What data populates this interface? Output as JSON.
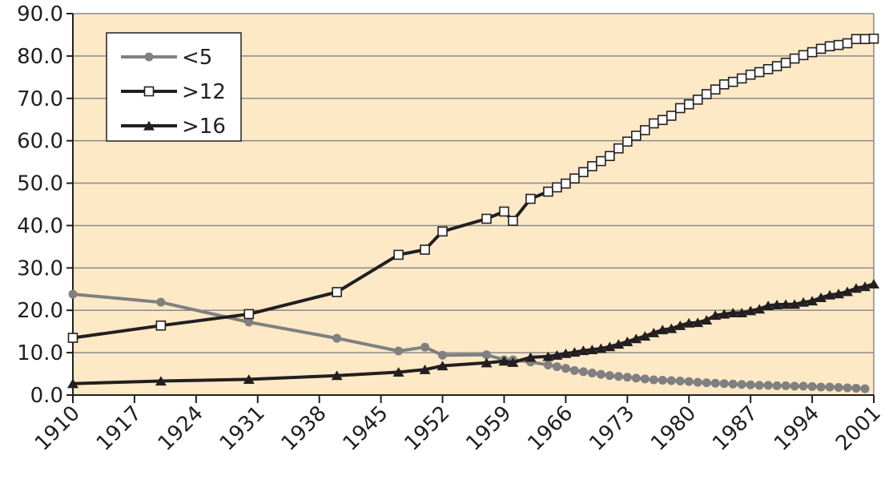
{
  "chart_data": {
    "type": "line",
    "title": "",
    "xlabel": "",
    "ylabel": "",
    "xlim": [
      1910,
      2001
    ],
    "ylim": [
      0,
      90
    ],
    "grid": true,
    "legend_position": "top-left",
    "background_color": "#fde9c6",
    "y_tick_labels": [
      "0.0",
      "10.0",
      "20.0",
      "30.0",
      "40.0",
      "50.0",
      "60.0",
      "70.0",
      "80.0",
      "90.0"
    ],
    "x_tick_labels": [
      "1910",
      "1917",
      "1924",
      "1931",
      "1938",
      "1945",
      "1952",
      "1959",
      "1966",
      "1973",
      "1980",
      "1987",
      "1994",
      "2001"
    ],
    "series": [
      {
        "name": "<5",
        "color": "#808080",
        "marker": "circle",
        "points": [
          [
            1910,
            23.8
          ],
          [
            1920,
            21.9
          ],
          [
            1930,
            17.2
          ],
          [
            1940,
            13.4
          ],
          [
            1947,
            10.4
          ],
          [
            1950,
            11.3
          ],
          [
            1952,
            9.4
          ],
          [
            1957,
            9.5
          ],
          [
            1959,
            8.3
          ],
          [
            1960,
            8.3
          ],
          [
            1962,
            7.8
          ],
          [
            1964,
            7.1
          ],
          [
            1965,
            6.7
          ],
          [
            1966,
            6.3
          ],
          [
            1967,
            5.8
          ],
          [
            1968,
            5.5
          ],
          [
            1969,
            5.2
          ],
          [
            1970,
            4.9
          ],
          [
            1971,
            4.6
          ],
          [
            1972,
            4.4
          ],
          [
            1973,
            4.2
          ],
          [
            1974,
            4.0
          ],
          [
            1975,
            3.8
          ],
          [
            1976,
            3.6
          ],
          [
            1977,
            3.5
          ],
          [
            1978,
            3.4
          ],
          [
            1979,
            3.3
          ],
          [
            1980,
            3.2
          ],
          [
            1981,
            3.0
          ],
          [
            1982,
            2.9
          ],
          [
            1983,
            2.8
          ],
          [
            1984,
            2.7
          ],
          [
            1985,
            2.6
          ],
          [
            1986,
            2.5
          ],
          [
            1987,
            2.4
          ],
          [
            1988,
            2.3
          ],
          [
            1989,
            2.3
          ],
          [
            1990,
            2.2
          ],
          [
            1991,
            2.2
          ],
          [
            1992,
            2.1
          ],
          [
            1993,
            2.1
          ],
          [
            1994,
            2.0
          ],
          [
            1995,
            1.9
          ],
          [
            1996,
            1.9
          ],
          [
            1997,
            1.8
          ],
          [
            1998,
            1.7
          ],
          [
            1999,
            1.6
          ],
          [
            2000,
            1.5
          ]
        ]
      },
      {
        "name": ">12",
        "color": "#231f20",
        "marker": "square-open",
        "points": [
          [
            1910,
            13.5
          ],
          [
            1920,
            16.4
          ],
          [
            1930,
            19.1
          ],
          [
            1940,
            24.3
          ],
          [
            1947,
            33.1
          ],
          [
            1950,
            34.3
          ],
          [
            1952,
            38.6
          ],
          [
            1957,
            41.6
          ],
          [
            1959,
            43.3
          ],
          [
            1960,
            41.1
          ],
          [
            1962,
            46.3
          ],
          [
            1964,
            48.0
          ],
          [
            1965,
            49.0
          ],
          [
            1966,
            49.9
          ],
          [
            1967,
            51.1
          ],
          [
            1968,
            52.6
          ],
          [
            1969,
            54.0
          ],
          [
            1970,
            55.2
          ],
          [
            1971,
            56.4
          ],
          [
            1972,
            58.2
          ],
          [
            1973,
            59.8
          ],
          [
            1974,
            61.2
          ],
          [
            1975,
            62.5
          ],
          [
            1976,
            64.1
          ],
          [
            1977,
            64.9
          ],
          [
            1978,
            65.9
          ],
          [
            1979,
            67.7
          ],
          [
            1980,
            68.6
          ],
          [
            1981,
            69.7
          ],
          [
            1982,
            71.0
          ],
          [
            1983,
            72.1
          ],
          [
            1984,
            73.3
          ],
          [
            1985,
            73.9
          ],
          [
            1986,
            74.7
          ],
          [
            1987,
            75.6
          ],
          [
            1988,
            76.2
          ],
          [
            1989,
            76.9
          ],
          [
            1990,
            77.6
          ],
          [
            1991,
            78.4
          ],
          [
            1992,
            79.4
          ],
          [
            1993,
            80.2
          ],
          [
            1994,
            80.9
          ],
          [
            1995,
            81.7
          ],
          [
            1996,
            82.3
          ],
          [
            1997,
            82.6
          ],
          [
            1998,
            83.0
          ],
          [
            1999,
            84.0
          ],
          [
            2000,
            84.0
          ],
          [
            2001,
            84.1
          ]
        ]
      },
      {
        "name": ">16",
        "color": "#231f20",
        "marker": "triangle",
        "points": [
          [
            1910,
            2.7
          ],
          [
            1920,
            3.3
          ],
          [
            1930,
            3.7
          ],
          [
            1940,
            4.6
          ],
          [
            1947,
            5.4
          ],
          [
            1950,
            6.0
          ],
          [
            1952,
            6.9
          ],
          [
            1957,
            7.6
          ],
          [
            1959,
            8.0
          ],
          [
            1960,
            7.7
          ],
          [
            1962,
            8.9
          ],
          [
            1964,
            9.1
          ],
          [
            1965,
            9.4
          ],
          [
            1966,
            9.8
          ],
          [
            1967,
            10.1
          ],
          [
            1968,
            10.5
          ],
          [
            1969,
            10.7
          ],
          [
            1970,
            11.0
          ],
          [
            1971,
            11.4
          ],
          [
            1972,
            12.0
          ],
          [
            1973,
            12.6
          ],
          [
            1974,
            13.3
          ],
          [
            1975,
            13.9
          ],
          [
            1976,
            14.7
          ],
          [
            1977,
            15.4
          ],
          [
            1978,
            15.7
          ],
          [
            1979,
            16.4
          ],
          [
            1980,
            17.0
          ],
          [
            1981,
            17.1
          ],
          [
            1982,
            17.7
          ],
          [
            1983,
            18.8
          ],
          [
            1984,
            19.1
          ],
          [
            1985,
            19.4
          ],
          [
            1986,
            19.4
          ],
          [
            1987,
            19.9
          ],
          [
            1988,
            20.3
          ],
          [
            1989,
            21.1
          ],
          [
            1990,
            21.3
          ],
          [
            1991,
            21.4
          ],
          [
            1992,
            21.4
          ],
          [
            1993,
            21.9
          ],
          [
            1994,
            22.2
          ],
          [
            1995,
            23.0
          ],
          [
            1996,
            23.6
          ],
          [
            1997,
            23.9
          ],
          [
            1998,
            24.4
          ],
          [
            1999,
            25.2
          ],
          [
            2000,
            25.6
          ],
          [
            2001,
            26.2
          ]
        ]
      }
    ]
  }
}
